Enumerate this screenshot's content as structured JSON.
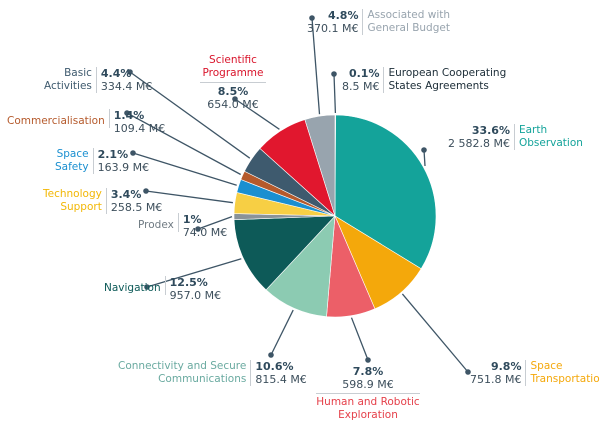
{
  "chart_data": {
    "type": "pie",
    "title": "",
    "unit": "M€",
    "slices": [
      {
        "key": "ecsa",
        "name": "European Cooperating States Agreements",
        "pct": "0.1%",
        "amount": "8.5 M€",
        "value": 8.5,
        "color": "#1a3a4a"
      },
      {
        "key": "eo",
        "name": "Earth Observation",
        "pct": "33.6%",
        "amount": "2 582.8 M€",
        "value": 2582.8,
        "color": "#14a39a"
      },
      {
        "key": "st",
        "name": "Space Transportation",
        "pct": "9.8%",
        "amount": "751.8 M€",
        "value": 751.8,
        "color": "#f4a80b"
      },
      {
        "key": "hre",
        "name": "Human and Robotic Exploration",
        "pct": "7.8%",
        "amount": "598.9 M€",
        "value": 598.9,
        "color": "#ec5f68"
      },
      {
        "key": "csc",
        "name": "Connectivity and Secure Communications",
        "pct": "10.6%",
        "amount": "815.4 M€",
        "value": 815.4,
        "color": "#8ccbb2"
      },
      {
        "key": "nav",
        "name": "Navigation",
        "pct": "12.5%",
        "amount": "957.0 M€",
        "value": 957.0,
        "color": "#0d5a58"
      },
      {
        "key": "prodex",
        "name": "Prodex",
        "pct": "1%",
        "amount": "74.0 M€",
        "value": 74.0,
        "color": "#8a9399"
      },
      {
        "key": "ts",
        "name": "Technology Support",
        "pct": "3.4%",
        "amount": "258.5 M€",
        "value": 258.5,
        "color": "#f7cf44"
      },
      {
        "key": "ss",
        "name": "Space Safety",
        "pct": "2.1%",
        "amount": "163.9 M€",
        "value": 163.9,
        "color": "#1a8fd0"
      },
      {
        "key": "com",
        "name": "Commercialisation",
        "pct": "1.4%",
        "amount": "109.4 M€",
        "value": 109.4,
        "color": "#b55a2c"
      },
      {
        "key": "ba",
        "name": "Basic Activities",
        "pct": "4.4%",
        "amount": "334.4 M€",
        "value": 334.4,
        "color": "#3e5a6e"
      },
      {
        "key": "sci",
        "name": "Scientific Programme",
        "pct": "8.5%",
        "amount": "654.0 M€",
        "value": 654.0,
        "color": "#e1172e"
      },
      {
        "key": "agb",
        "name": "Associated with General Budget",
        "pct": "4.8%",
        "amount": "370.1 M€",
        "value": 370.1,
        "color": "#98a4ae"
      }
    ]
  },
  "labels": {
    "agb": {
      "pct": "4.8%",
      "amt": "370.1 M€",
      "line1": "Associated with",
      "line2": "General Budget"
    },
    "ecsa": {
      "pct": "0.1%",
      "amt": "8.5 M€",
      "line1": "European Cooperating",
      "line2": "States Agreements"
    },
    "sci": {
      "line1": "Scientific",
      "line2": "Programme",
      "pct": "8.5%",
      "amt": "654.0 M€"
    },
    "ba": {
      "line1": "Basic",
      "line2": "Activities",
      "pct": "4.4%",
      "amt": "334.4 M€"
    },
    "com": {
      "name": "Commercialisation",
      "pct": "1.4%",
      "amt": "109.4 M€"
    },
    "ss": {
      "line1": "Space",
      "line2": "Safety",
      "pct": "2.1%",
      "amt": "163.9 M€"
    },
    "ts": {
      "line1": "Technology",
      "line2": "Support",
      "pct": "3.4%",
      "amt": "258.5 M€"
    },
    "prodex": {
      "name": "Prodex",
      "pct": "1%",
      "amt": "74.0 M€"
    },
    "eo": {
      "pct": "33.6%",
      "amt": "2 582.8 M€",
      "line1": "Earth",
      "line2": "Observation"
    },
    "nav": {
      "name": "Navigation",
      "pct": "12.5%",
      "amt": "957.0 M€"
    },
    "st": {
      "pct": "9.8%",
      "amt": "751.8 M€",
      "line1": "Space",
      "line2": "Transportation"
    },
    "hre": {
      "pct": "7.8%",
      "amt": "598.9 M€",
      "line1": "Human and Robotic",
      "line2": "Exploration"
    },
    "csc": {
      "line1": "Connectivity and Secure",
      "line2": "Communications",
      "pct": "10.6%",
      "amt": "815.4 M€"
    }
  },
  "colors": {
    "leader": "#3e5566",
    "scientific_text": "#d9142b",
    "commercialisation_text": "#b55a2c",
    "space_safety_text": "#1a8fd0",
    "tech_support_text": "#f2b705",
    "navigation_text": "#0d5a58",
    "space_transport_text": "#f4a80b",
    "hre_text": "#e5404a",
    "csc_text": "#6aaaa0",
    "eo_text": "#14a39a"
  }
}
